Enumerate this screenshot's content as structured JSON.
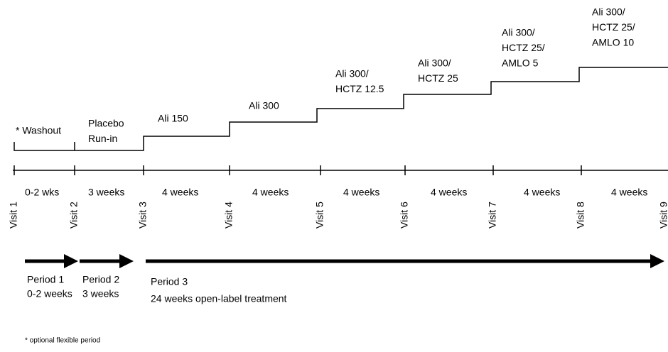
{
  "steps": [
    {
      "lines": [
        "* Washout"
      ]
    },
    {
      "lines": [
        "Placebo",
        "Run-in"
      ]
    },
    {
      "lines": [
        "Ali 150"
      ]
    },
    {
      "lines": [
        "Ali 300"
      ]
    },
    {
      "lines": [
        "Ali 300/",
        "HCTZ 12.5"
      ]
    },
    {
      "lines": [
        "Ali 300/",
        "HCTZ 25"
      ]
    },
    {
      "lines": [
        "Ali 300/",
        "HCTZ 25/",
        "AMLO 5"
      ]
    },
    {
      "lines": [
        "Ali 300/",
        "HCTZ 25/",
        "AMLO 10"
      ]
    }
  ],
  "visits": [
    "Visit 1",
    "Visit 2",
    "Visit 3",
    "Visit 4",
    "Visit 5",
    "Visit 6",
    "Visit 7",
    "Visit 8",
    "Visit 9"
  ],
  "durations": [
    "0-2 wks",
    "3 weeks",
    "4 weeks",
    "4 weeks",
    "4 weeks",
    "4 weeks",
    "4 weeks",
    "4 weeks"
  ],
  "periods": [
    {
      "lines": [
        "Period 1",
        "0-2 weeks"
      ]
    },
    {
      "lines": [
        "Period 2",
        "3 weeks"
      ]
    },
    {
      "lines": [
        "Period 3",
        "24 weeks open-label treatment"
      ]
    }
  ],
  "footnote": "* optional flexible period"
}
